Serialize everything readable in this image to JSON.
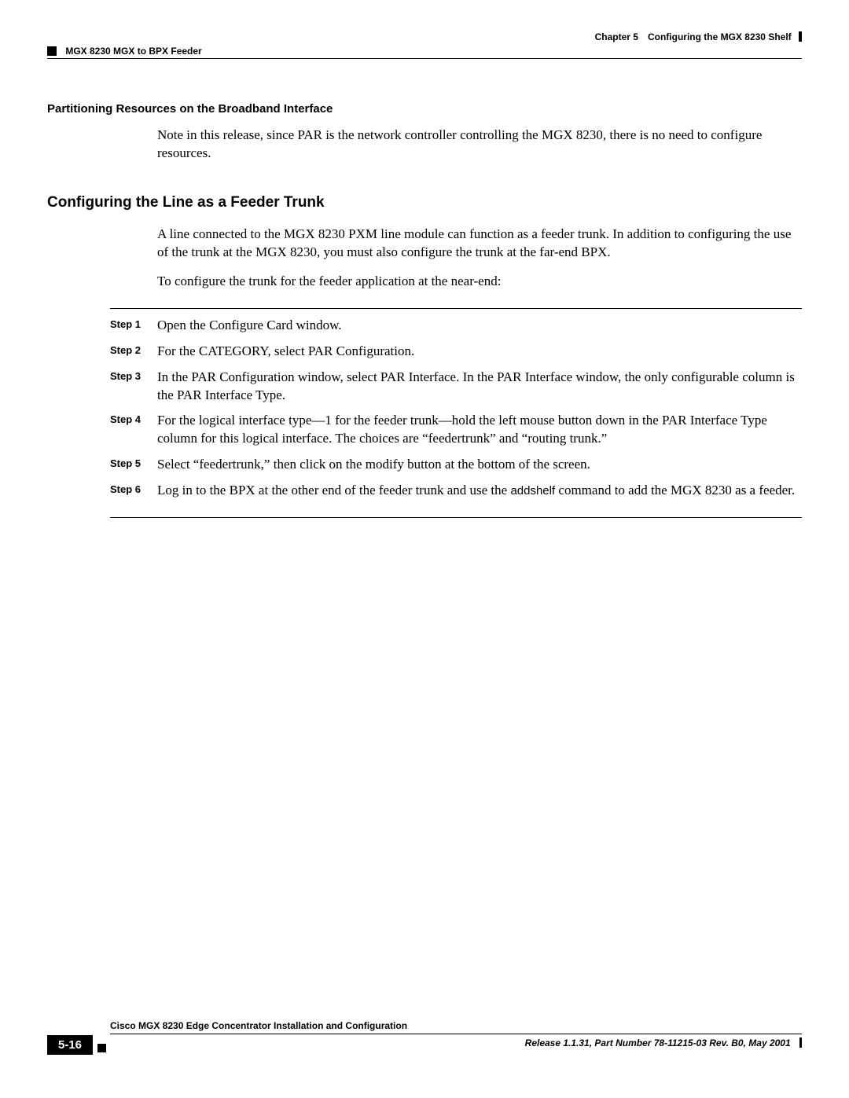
{
  "header": {
    "chapter": "Chapter 5 Configuring the MGX 8230 Shelf",
    "section": "MGX 8230 MGX to BPX Feeder"
  },
  "sec1": {
    "title": "Partitioning Resources on the Broadband Interface",
    "p1": "Note in this release, since PAR is the network controller controlling the MGX 8230, there is no need to configure resources."
  },
  "sec2": {
    "title": "Configuring the Line as a Feeder Trunk",
    "p1": "A line connected to the MGX 8230 PXM line module can function as a feeder trunk. In addition to configuring the use of the trunk at the MGX 8230, you must also configure the trunk at the far-end BPX.",
    "p2": "To configure the trunk for the feeder application at the near-end:"
  },
  "steps": [
    {
      "label": "Step 1",
      "text": "Open the Configure Card window."
    },
    {
      "label": "Step 2",
      "text": "For the CATEGORY, select PAR Configuration."
    },
    {
      "label": "Step 3",
      "text": "In the PAR Configuration window, select PAR Interface. In the PAR Interface window, the only configurable column is the PAR Interface Type."
    },
    {
      "label": "Step 4",
      "text": "For the logical interface type—1 for the feeder trunk—hold the left mouse button down in the PAR Interface Type column for this logical interface. The choices are “feedertrunk” and “routing trunk.”"
    },
    {
      "label": "Step 5",
      "text": "Select “feedertrunk,” then click on the modify button at the bottom of the screen."
    },
    {
      "label": "Step 6",
      "text_pre": "Log in to the BPX at the other end of the feeder trunk and use the ",
      "cmd": "addshelf",
      "text_post": " command to add the MGX 8230 as a feeder."
    }
  ],
  "footer": {
    "doc_title": "Cisco MGX 8230 Edge Concentrator Installation and Configuration",
    "page": "5-16",
    "release": "Release 1.1.31, Part Number 78-11215-03 Rev. B0, May 2001"
  }
}
